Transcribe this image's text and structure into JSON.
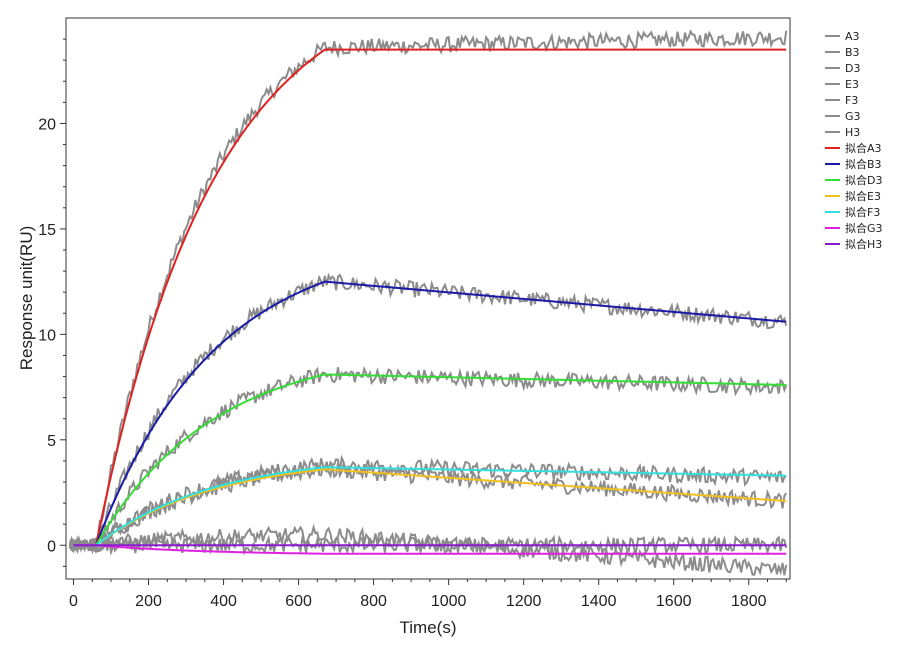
{
  "chart_data": {
    "type": "line",
    "xlabel": "Time(s)",
    "ylabel": "Response unit(RU)",
    "xlim": [
      -20,
      1910
    ],
    "ylim": [
      -1.6,
      25
    ],
    "xticks": [
      0,
      200,
      400,
      600,
      800,
      1000,
      1200,
      1400,
      1600,
      1800
    ],
    "yticks": [
      0,
      5,
      10,
      15,
      20
    ],
    "legend_position": "top-right",
    "grid": false,
    "injection_start": 60,
    "injection_end": 670,
    "end_time": 1900,
    "raw_color": "#8c8c8c",
    "series": [
      {
        "name": "A3",
        "kind": "raw",
        "color": "#8c8c8c",
        "plateau": 23.6,
        "end": 24.1
      },
      {
        "name": "B3",
        "kind": "raw",
        "color": "#8c8c8c",
        "plateau": 12.5,
        "end": 10.6
      },
      {
        "name": "D3",
        "kind": "raw",
        "color": "#8c8c8c",
        "plateau": 8.1,
        "end": 7.5
      },
      {
        "name": "E3",
        "kind": "raw",
        "color": "#8c8c8c",
        "plateau": 3.6,
        "end": 2.1
      },
      {
        "name": "F3",
        "kind": "raw",
        "color": "#8c8c8c",
        "plateau": 3.8,
        "end": 3.2
      },
      {
        "name": "G3",
        "kind": "raw",
        "color": "#8c8c8c",
        "plateau": 0.5,
        "end": -1.2
      },
      {
        "name": "H3",
        "kind": "raw",
        "color": "#8c8c8c",
        "plateau": 0.0,
        "end": 0.0
      },
      {
        "name": "拟合A3",
        "kind": "fit",
        "color": "#e32020",
        "plateau": 23.5,
        "end": 23.5
      },
      {
        "name": "拟合B3",
        "kind": "fit",
        "color": "#1a1aa8",
        "plateau": 12.5,
        "end": 10.6
      },
      {
        "name": "拟合D3",
        "kind": "fit",
        "color": "#33dd33",
        "plateau": 8.1,
        "end": 7.6
      },
      {
        "name": "拟合E3",
        "kind": "fit",
        "color": "#f0c020",
        "plateau": 3.6,
        "end": 2.1
      },
      {
        "name": "拟合F3",
        "kind": "fit",
        "color": "#33e0e0",
        "plateau": 3.7,
        "end": 3.3
      },
      {
        "name": "拟合G3",
        "kind": "fit",
        "color": "#e020e0",
        "plateau": -0.4,
        "end": -0.4
      },
      {
        "name": "拟合H3",
        "kind": "fit",
        "color": "#8a1ad0",
        "plateau": 0.0,
        "end": 0.0
      }
    ]
  }
}
